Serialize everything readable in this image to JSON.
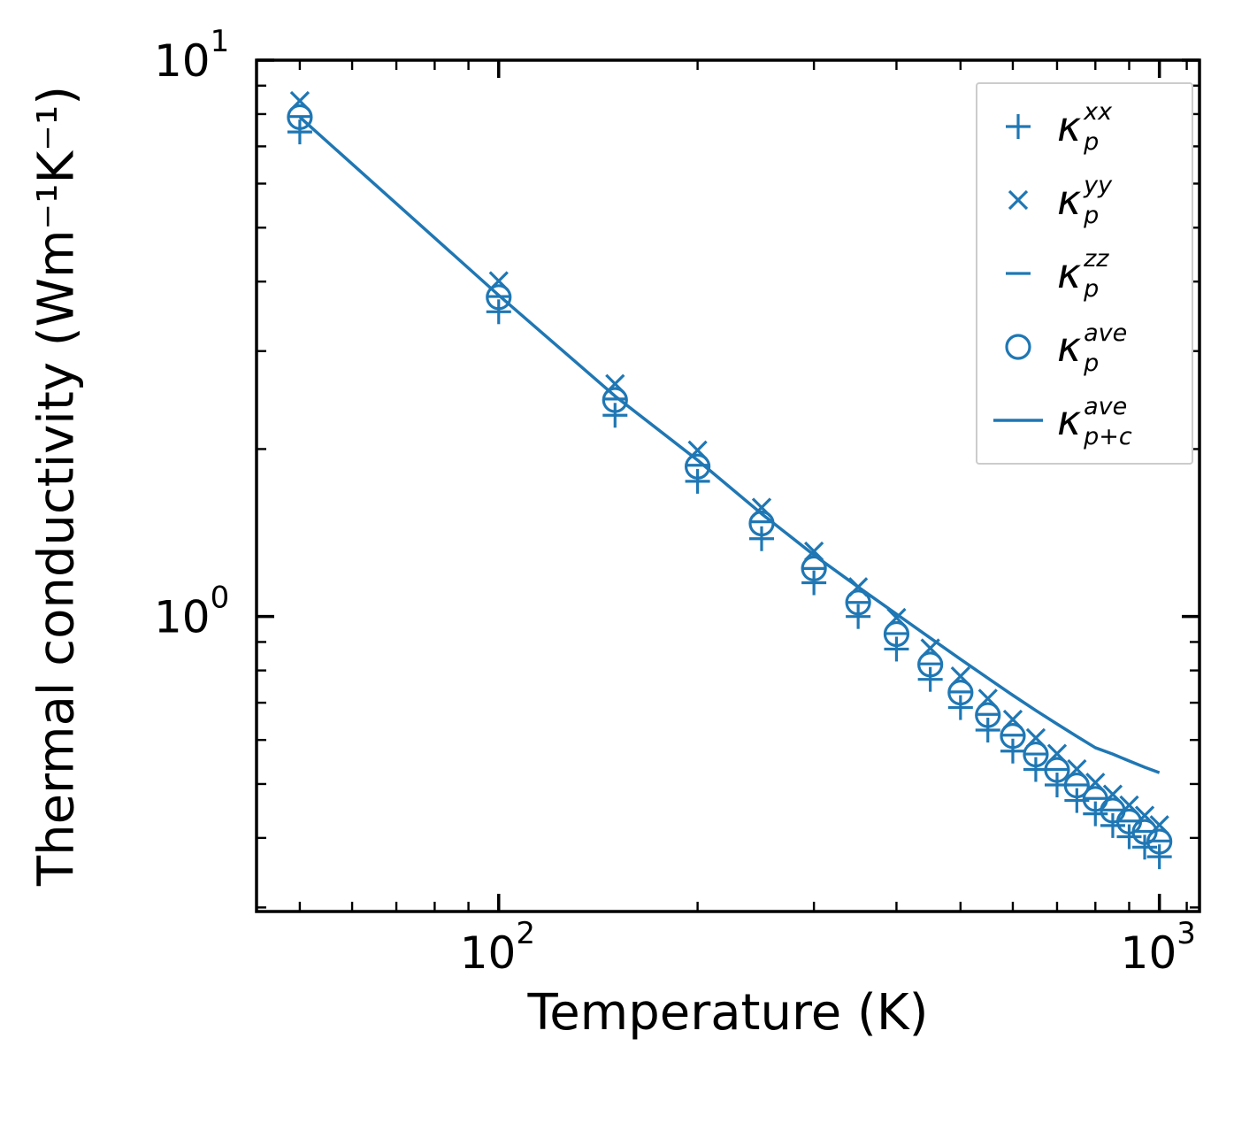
{
  "chart_data": {
    "type": "scatter",
    "title": "",
    "xlabel": "Temperature (K)",
    "ylabel": "Thermal conductivity (Wm⁻¹K⁻¹)",
    "x_scale": "log",
    "y_scale": "log",
    "xlim": [
      43,
      1150
    ],
    "ylim": [
      0.295,
      10
    ],
    "grid": false,
    "color": "#1f77b4",
    "axis_color": "#000000",
    "legend_position": "upper right",
    "x_major_ticks": [
      {
        "value": 100,
        "base": "10",
        "exp": "2"
      },
      {
        "value": 1000,
        "base": "10",
        "exp": "3"
      }
    ],
    "y_major_ticks": [
      {
        "value": 1,
        "base": "10",
        "exp": "0"
      },
      {
        "value": 10,
        "base": "10",
        "exp": "1"
      }
    ],
    "x_minor_ticks": [
      50,
      60,
      70,
      80,
      90,
      200,
      300,
      400,
      500,
      600,
      700,
      800,
      900,
      1100
    ],
    "y_minor_ticks": [
      0.3,
      0.4,
      0.5,
      0.6,
      0.7,
      0.8,
      0.9,
      2,
      3,
      4,
      5,
      6,
      7,
      8,
      9
    ],
    "temperatures": [
      50,
      100,
      150,
      200,
      250,
      300,
      350,
      400,
      450,
      500,
      550,
      600,
      650,
      700,
      750,
      800,
      850,
      900,
      950,
      1000
    ],
    "series": [
      {
        "name": "kappa_p_xx",
        "marker": "plus",
        "symbol": "κ",
        "sub": "p",
        "sup": "xx",
        "values": [
          7.43,
          3.53,
          2.3,
          1.75,
          1.38,
          1.15,
          1.0,
          0.874,
          0.771,
          0.686,
          0.625,
          0.573,
          0.531,
          0.498,
          0.467,
          0.442,
          0.421,
          0.402,
          0.385,
          0.37
        ]
      },
      {
        "name": "kappa_p_yy",
        "marker": "cross",
        "symbol": "κ",
        "sub": "p",
        "sup": "yy",
        "values": [
          8.45,
          4.01,
          2.62,
          1.99,
          1.57,
          1.31,
          1.13,
          0.995,
          0.877,
          0.781,
          0.712,
          0.653,
          0.605,
          0.567,
          0.532,
          0.503,
          0.479,
          0.458,
          0.439,
          0.422
        ]
      },
      {
        "name": "kappa_p_zz",
        "marker": "hline",
        "symbol": "κ",
        "sub": "p",
        "sup": "zz",
        "values": [
          7.92,
          3.76,
          2.46,
          1.87,
          1.48,
          1.22,
          1.06,
          0.932,
          0.822,
          0.732,
          0.667,
          0.612,
          0.566,
          0.531,
          0.498,
          0.471,
          0.449,
          0.429,
          0.411,
          0.395
        ]
      },
      {
        "name": "kappa_p_ave",
        "marker": "circle",
        "symbol": "κ",
        "sub": "p",
        "sup": "ave",
        "values": [
          7.9,
          3.75,
          2.45,
          1.86,
          1.47,
          1.22,
          1.06,
          0.93,
          0.82,
          0.73,
          0.665,
          0.61,
          0.565,
          0.53,
          0.497,
          0.47,
          0.448,
          0.428,
          0.41,
          0.394
        ]
      },
      {
        "name": "kappa_p_plus_c_ave",
        "marker": "line",
        "symbol": "κ",
        "sub": "p+c",
        "sup": "ave",
        "values": [
          7.9,
          3.78,
          2.49,
          1.91,
          1.53,
          1.29,
          1.13,
          1.01,
          0.915,
          0.838,
          0.775,
          0.722,
          0.678,
          0.641,
          0.609,
          0.581,
          0.566,
          0.55,
          0.536,
          0.524
        ]
      }
    ]
  }
}
